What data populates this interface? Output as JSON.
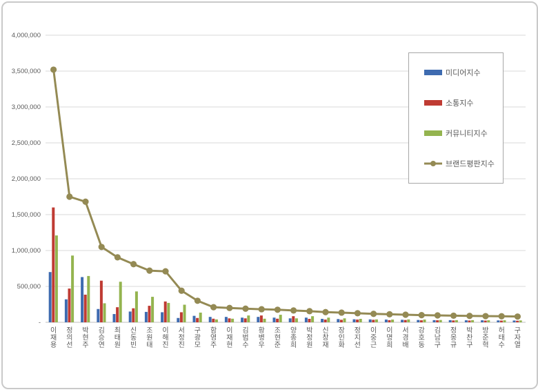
{
  "chart": {
    "y_axis_zero_label": "-",
    "axis_label_color": "#595959",
    "gridline_color": "#d9d9d9",
    "axis_line_color": "#bfbfbf"
  },
  "chart_data": {
    "type": "combo-bar-line",
    "title": "",
    "xlabel": "",
    "ylabel": "",
    "ylim": [
      0,
      4000000
    ],
    "ytick_step": 500000,
    "grid": true,
    "legend_position": "upper-right-box",
    "categories": [
      "이재용",
      "정의선",
      "박현주",
      "김승연",
      "최태원",
      "신동빈",
      "조원태",
      "이해진",
      "서정진",
      "구광모",
      "함영주",
      "이재현",
      "김범수",
      "황병우",
      "조현준",
      "양종희",
      "박정원",
      "신창재",
      "장인화",
      "정지선",
      "이중근",
      "이명희",
      "서경배",
      "강호동",
      "김남구",
      "정몽규",
      "박찬구",
      "방준혁",
      "허태수",
      "구자열"
    ],
    "series": [
      {
        "name": "미디어지수",
        "type": "bar",
        "color": "#3e6bb0",
        "values": [
          700000,
          320000,
          630000,
          185000,
          115000,
          150000,
          145000,
          140000,
          60000,
          90000,
          75000,
          75000,
          65000,
          75000,
          65000,
          55000,
          65000,
          48000,
          45000,
          42000,
          40000,
          38000,
          35000,
          32000,
          30000,
          30000,
          28000,
          28000,
          26000,
          25000
        ]
      },
      {
        "name": "소통지수",
        "type": "bar",
        "color": "#bf3b33",
        "values": [
          1600000,
          470000,
          385000,
          580000,
          210000,
          195000,
          230000,
          290000,
          140000,
          60000,
          50000,
          55000,
          55000,
          95000,
          50000,
          85000,
          48000,
          38000,
          35000,
          38000,
          35000,
          30000,
          32000,
          28000,
          28000,
          26000,
          25000,
          24000,
          24000,
          22000
        ]
      },
      {
        "name": "커뮤니티지수",
        "type": "bar",
        "color": "#94b44f",
        "values": [
          1210000,
          930000,
          645000,
          265000,
          565000,
          430000,
          355000,
          270000,
          245000,
          135000,
          40000,
          50000,
          95000,
          50000,
          105000,
          55000,
          85000,
          65000,
          55000,
          48000,
          40000,
          38000,
          40000,
          38000,
          32000,
          30000,
          30000,
          28000,
          28000,
          26000
        ]
      },
      {
        "name": "브랜드평판지수",
        "type": "line",
        "color": "#948a54",
        "values": [
          3520000,
          1750000,
          1680000,
          1050000,
          905000,
          810000,
          720000,
          710000,
          440000,
          300000,
          210000,
          200000,
          190000,
          182000,
          175000,
          165000,
          155000,
          142000,
          135000,
          126000,
          118000,
          112000,
          106000,
          100000,
          96000,
          92000,
          89000,
          86000,
          84000,
          80000
        ]
      }
    ]
  }
}
